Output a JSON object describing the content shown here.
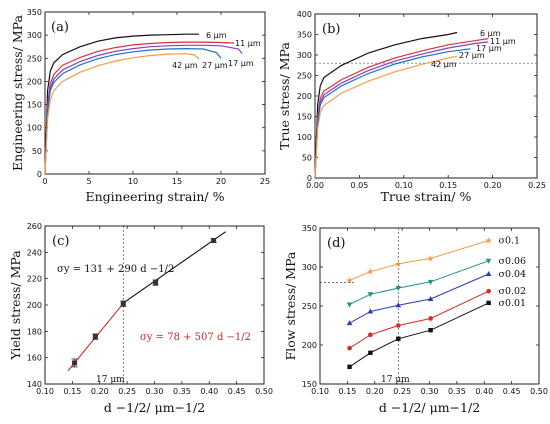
{
  "chart_data": [
    {
      "panel": "(a)",
      "type": "line",
      "xlabel": "Engineering strain/ %",
      "ylabel": "Engineering stress/ MPa",
      "xlim": [
        0,
        25
      ],
      "ylim": [
        0,
        350
      ],
      "xticks": [
        0,
        5,
        10,
        15,
        20,
        25
      ],
      "yticks": [
        0,
        50,
        100,
        150,
        200,
        250,
        300,
        350
      ],
      "grid": false,
      "series": [
        {
          "name": "6 μm",
          "color": "#111111",
          "points": [
            [
              0,
              0
            ],
            [
              0.3,
              180
            ],
            [
              0.6,
              222
            ],
            [
              1,
              240
            ],
            [
              2,
              258
            ],
            [
              4,
              275
            ],
            [
              6,
              287
            ],
            [
              8,
              294
            ],
            [
              10,
              298
            ],
            [
              12,
              300
            ],
            [
              14,
              301
            ],
            [
              16,
              302
            ],
            [
              17.5,
              302
            ]
          ]
        },
        {
          "name": "11 μm",
          "color": "#d8333c",
          "points": [
            [
              0,
              0
            ],
            [
              0.3,
              150
            ],
            [
              0.6,
              195
            ],
            [
              1,
              215
            ],
            [
              2,
              235
            ],
            [
              4,
              252
            ],
            [
              6,
              265
            ],
            [
              8,
              273
            ],
            [
              10,
              279
            ],
            [
              12,
              282
            ],
            [
              14,
              284
            ],
            [
              16,
              285
            ],
            [
              18,
              285
            ],
            [
              20,
              284
            ],
            [
              21.5,
              283
            ]
          ]
        },
        {
          "name": "17 μm",
          "color": "#8a3fbf",
          "points": [
            [
              0,
              0
            ],
            [
              0.3,
              140
            ],
            [
              0.6,
              185
            ],
            [
              1,
              205
            ],
            [
              2,
              225
            ],
            [
              4,
              243
            ],
            [
              6,
              256
            ],
            [
              8,
              265
            ],
            [
              10,
              271
            ],
            [
              12,
              275
            ],
            [
              14,
              277
            ],
            [
              16,
              278
            ],
            [
              18,
              278
            ],
            [
              20,
              277
            ],
            [
              22,
              270
            ],
            [
              22.4,
              260
            ]
          ]
        },
        {
          "name": "27 μm",
          "color": "#1f73c9",
          "points": [
            [
              0,
              0
            ],
            [
              0.3,
              135
            ],
            [
              0.6,
              180
            ],
            [
              1,
              198
            ],
            [
              2,
              217
            ],
            [
              4,
              236
            ],
            [
              6,
              249
            ],
            [
              8,
              258
            ],
            [
              10,
              264
            ],
            [
              12,
              268
            ],
            [
              14,
              270
            ],
            [
              16,
              271
            ],
            [
              18,
              270
            ],
            [
              19.5,
              262
            ],
            [
              20,
              250
            ]
          ]
        },
        {
          "name": "42 μm",
          "color": "#f39c4a",
          "points": [
            [
              0,
              0
            ],
            [
              0.3,
              120
            ],
            [
              0.6,
              160
            ],
            [
              1,
              180
            ],
            [
              2,
              200
            ],
            [
              4,
              220
            ],
            [
              6,
              234
            ],
            [
              8,
              244
            ],
            [
              10,
              251
            ],
            [
              12,
              256
            ],
            [
              14,
              259
            ],
            [
              16,
              260
            ],
            [
              17,
              257
            ],
            [
              17.5,
              248
            ]
          ]
        }
      ],
      "labels": [
        "6 μm",
        "11 μm",
        "17 μm",
        "27 μm",
        "42 μm"
      ]
    },
    {
      "panel": "(b)",
      "type": "line",
      "xlabel": "True strain/ %",
      "ylabel": "True stress/ MPa",
      "xlim": [
        0,
        0.25
      ],
      "ylim": [
        0,
        400
      ],
      "xticks": [
        0.0,
        0.05,
        0.1,
        0.15,
        0.2,
        0.25
      ],
      "yticks": [
        0,
        50,
        100,
        150,
        200,
        250,
        300,
        350,
        400
      ],
      "reference_line_y": 280,
      "series": [
        {
          "name": "6 μm",
          "color": "#111111",
          "points": [
            [
              0,
              0
            ],
            [
              0.003,
              180
            ],
            [
              0.006,
              225
            ],
            [
              0.01,
              245
            ],
            [
              0.03,
              275
            ],
            [
              0.06,
              305
            ],
            [
              0.09,
              325
            ],
            [
              0.12,
              340
            ],
            [
              0.15,
              350
            ],
            [
              0.16,
              355
            ]
          ]
        },
        {
          "name": "11 μm",
          "color": "#d8333c",
          "points": [
            [
              0,
              0
            ],
            [
              0.003,
              150
            ],
            [
              0.006,
              195
            ],
            [
              0.01,
              212
            ],
            [
              0.03,
              240
            ],
            [
              0.06,
              270
            ],
            [
              0.09,
              293
            ],
            [
              0.12,
              310
            ],
            [
              0.15,
              325
            ],
            [
              0.18,
              335
            ],
            [
              0.195,
              340
            ]
          ]
        },
        {
          "name": "17 μm",
          "color": "#8a3fbf",
          "points": [
            [
              0,
              0
            ],
            [
              0.003,
              140
            ],
            [
              0.006,
              185
            ],
            [
              0.01,
              203
            ],
            [
              0.03,
              232
            ],
            [
              0.06,
              262
            ],
            [
              0.09,
              285
            ],
            [
              0.12,
              302
            ],
            [
              0.15,
              317
            ],
            [
              0.18,
              328
            ],
            [
              0.195,
              332
            ]
          ]
        },
        {
          "name": "27 μm",
          "color": "#1f73c9",
          "points": [
            [
              0,
              0
            ],
            [
              0.003,
              135
            ],
            [
              0.006,
              178
            ],
            [
              0.01,
              196
            ],
            [
              0.03,
              225
            ],
            [
              0.06,
              255
            ],
            [
              0.09,
              278
            ],
            [
              0.12,
              295
            ],
            [
              0.15,
              308
            ],
            [
              0.175,
              315
            ]
          ]
        },
        {
          "name": "42 μm",
          "color": "#f39c4a",
          "points": [
            [
              0,
              0
            ],
            [
              0.003,
              120
            ],
            [
              0.006,
              160
            ],
            [
              0.01,
              177
            ],
            [
              0.03,
              207
            ],
            [
              0.06,
              236
            ],
            [
              0.09,
              259
            ],
            [
              0.12,
              277
            ],
            [
              0.15,
              293
            ],
            [
              0.16,
              297
            ]
          ]
        }
      ],
      "labels": [
        "6 μm",
        "11 μm",
        "17 μm",
        "27 μm",
        "42 μm"
      ]
    },
    {
      "panel": "(c)",
      "type": "scatter",
      "xlabel": "d −1/2/ μm−1/2",
      "ylabel": "Yield stress/ MPa",
      "xlim": [
        0.1,
        0.5
      ],
      "ylim": [
        140,
        260
      ],
      "xticks": [
        0.1,
        0.15,
        0.2,
        0.25,
        0.3,
        0.35,
        0.4,
        0.45,
        0.5
      ],
      "yticks": [
        140,
        160,
        180,
        200,
        220,
        240,
        260
      ],
      "reference_line_x": 0.243,
      "reference_label": "17 μm",
      "points": [
        {
          "x": 0.154,
          "y": 156,
          "err": 3
        },
        {
          "x": 0.192,
          "y": 176,
          "err": 2
        },
        {
          "x": 0.243,
          "y": 201,
          "err": 2
        },
        {
          "x": 0.302,
          "y": 217,
          "err": 2
        },
        {
          "x": 0.408,
          "y": 249,
          "err": 1.5
        }
      ],
      "fits": [
        {
          "name": "σy = 131 + 290 d −1/2",
          "color": "#111111",
          "intercept": 131,
          "slope": 290,
          "x_range": [
            0.243,
            0.43
          ]
        },
        {
          "name": "σy = 78 + 507 d −1/2",
          "color": "#d42a2a",
          "intercept": 78,
          "slope": 507,
          "x_range": [
            0.142,
            0.243
          ]
        }
      ]
    },
    {
      "panel": "(d)",
      "type": "scatter",
      "xlabel": "d −1/2/ μm−1/2",
      "ylabel": "Flow stress/ MPa",
      "xlim": [
        0.1,
        0.5
      ],
      "ylim": [
        150,
        350
      ],
      "xticks": [
        0.1,
        0.15,
        0.2,
        0.25,
        0.3,
        0.35,
        0.4,
        0.45,
        0.5
      ],
      "yticks": [
        150,
        200,
        250,
        300,
        350
      ],
      "reference_line_x": 0.243,
      "reference_line_y": 280,
      "reference_label": "17 μm",
      "x": [
        0.154,
        0.192,
        0.243,
        0.302,
        0.408
      ],
      "series": [
        {
          "name": "σ0.1",
          "color": "#f39c4a",
          "values": [
            283,
            294,
            304,
            311,
            334
          ]
        },
        {
          "name": "σ0.06",
          "color": "#1e8f8a",
          "values": [
            252,
            265,
            273,
            281,
            308
          ]
        },
        {
          "name": "σ0.04",
          "color": "#2a39c4",
          "values": [
            228,
            243,
            251,
            259,
            291
          ]
        },
        {
          "name": "σ0.02",
          "color": "#d42a2a",
          "values": [
            196,
            213,
            225,
            234,
            269
          ]
        },
        {
          "name": "σ0.01",
          "color": "#111111",
          "values": [
            172,
            190,
            208,
            219,
            254
          ]
        }
      ]
    }
  ],
  "text": {
    "a_panel": "(a)",
    "b_panel": "(b)",
    "c_panel": "(c)",
    "d_panel": "(d)",
    "c_fit_black": "σy = 131 + 290 d −1/2",
    "c_fit_red": "σy = 78 + 507 d −1/2",
    "c_ref": "17 μm",
    "d_ref": "17 μm"
  }
}
